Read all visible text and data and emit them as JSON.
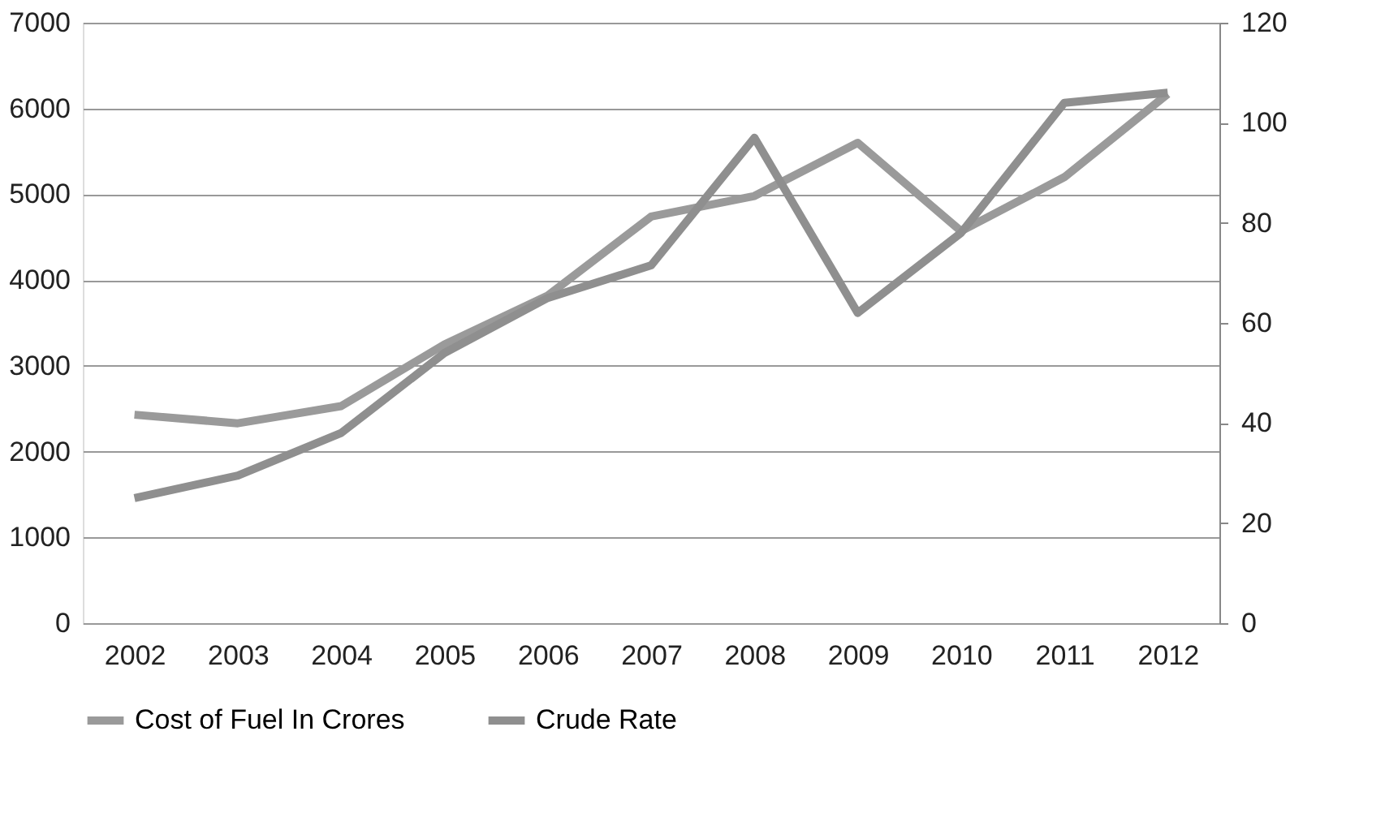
{
  "chart_data": {
    "type": "line",
    "categories": [
      "2002",
      "2003",
      "2004",
      "2005",
      "2006",
      "2007",
      "2008",
      "2009",
      "2010",
      "2011",
      "2012"
    ],
    "series": [
      {
        "name": "Cost of Fuel In Crores",
        "color": "#9a9a9a",
        "values": [
          2430,
          2330,
          2530,
          3250,
          3820,
          4740,
          4980,
          5600,
          4570,
          5200,
          6170
        ]
      },
      {
        "name": "Crude Rate",
        "color": "#8f8f8f",
        "axis": "y2",
        "values": [
          25,
          29.5,
          38,
          54,
          65,
          71.5,
          97,
          62,
          78,
          104,
          106
        ]
      }
    ],
    "ylim": [
      0,
      7000
    ],
    "yticks": [
      0,
      1000,
      2000,
      3000,
      4000,
      5000,
      6000,
      7000
    ],
    "y2lim": [
      0,
      120
    ],
    "y2ticks": [
      0,
      20,
      40,
      60,
      80,
      100,
      120
    ],
    "grid": "y",
    "legend": "bottom",
    "marker": "none",
    "line_style": "solid"
  }
}
